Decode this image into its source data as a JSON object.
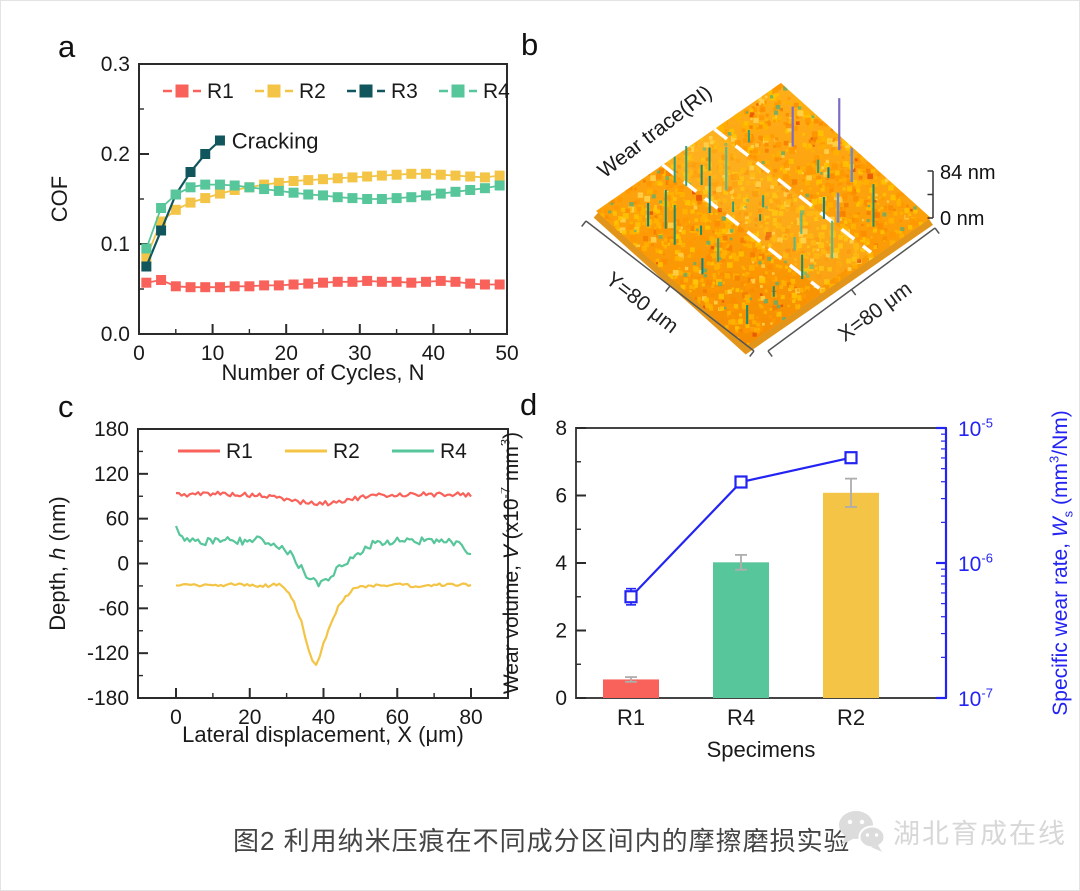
{
  "figure": {
    "panels": {
      "a": {
        "label": "a"
      },
      "b": {
        "label": "b"
      },
      "c": {
        "label": "c"
      },
      "d": {
        "label": "d"
      }
    }
  },
  "caption": {
    "text": "图2 利用纳米压痕在不同成分区间内的摩擦磨损实验",
    "watermark": "湖北育成在线"
  },
  "colors": {
    "r1": "#F8625A",
    "r2": "#F3C445",
    "r3": "#11565C",
    "r4": "#57C69B",
    "blue": "#2323F3",
    "axis": "#2B2B2B",
    "error_gray": "#ADADAD"
  },
  "chart_data": [
    {
      "id": "cof_vs_cycles",
      "type": "line",
      "xlabel": "Number of Cycles, N",
      "ylabel": "COF",
      "xlim": [
        0,
        50
      ],
      "ylim": [
        0,
        0.3
      ],
      "xtick_values": [
        0,
        10,
        20,
        30,
        40,
        50
      ],
      "xtick_labels": [
        "0",
        "10",
        "20",
        "30",
        "40",
        "50"
      ],
      "ytick_values": [
        0,
        0.1,
        0.2,
        0.3
      ],
      "ytick_labels": [
        "0.0",
        "0.1",
        "0.2",
        "0.3"
      ],
      "legend_position": "top-inside",
      "annotation": "Cracking",
      "annotation_at": {
        "x": 12.6,
        "y": 0.215
      },
      "series": [
        {
          "name": "R1",
          "color_key": "r1",
          "marker": "square",
          "x": [
            1,
            3,
            5,
            7,
            9,
            11,
            13,
            15,
            17,
            19,
            21,
            23,
            25,
            27,
            29,
            31,
            33,
            35,
            37,
            39,
            41,
            43,
            45,
            47,
            49
          ],
          "y": [
            0.057,
            0.06,
            0.053,
            0.052,
            0.052,
            0.052,
            0.053,
            0.053,
            0.054,
            0.054,
            0.055,
            0.056,
            0.057,
            0.058,
            0.058,
            0.059,
            0.058,
            0.058,
            0.057,
            0.058,
            0.059,
            0.058,
            0.056,
            0.055,
            0.055
          ]
        },
        {
          "name": "R2",
          "color_key": "r2",
          "marker": "square",
          "x": [
            1,
            3,
            5,
            7,
            9,
            11,
            13,
            15,
            17,
            19,
            21,
            23,
            25,
            27,
            29,
            31,
            33,
            35,
            37,
            39,
            41,
            43,
            45,
            47,
            49
          ],
          "y": [
            0.085,
            0.125,
            0.138,
            0.146,
            0.151,
            0.156,
            0.16,
            0.163,
            0.166,
            0.168,
            0.17,
            0.171,
            0.172,
            0.173,
            0.174,
            0.175,
            0.176,
            0.177,
            0.178,
            0.178,
            0.177,
            0.176,
            0.175,
            0.174,
            0.176
          ]
        },
        {
          "name": "R3",
          "color_key": "r3",
          "marker": "square",
          "x": [
            1,
            3,
            5,
            7,
            9,
            11
          ],
          "y": [
            0.075,
            0.115,
            0.155,
            0.18,
            0.2,
            0.215
          ]
        },
        {
          "name": "R4",
          "color_key": "r4",
          "marker": "square",
          "x": [
            1,
            3,
            5,
            7,
            9,
            11,
            13,
            15,
            17,
            19,
            21,
            23,
            25,
            27,
            29,
            31,
            33,
            35,
            37,
            39,
            41,
            43,
            45,
            47,
            49
          ],
          "y": [
            0.095,
            0.14,
            0.155,
            0.163,
            0.166,
            0.166,
            0.165,
            0.163,
            0.161,
            0.159,
            0.157,
            0.155,
            0.154,
            0.152,
            0.151,
            0.15,
            0.15,
            0.151,
            0.152,
            0.154,
            0.156,
            0.158,
            0.16,
            0.162,
            0.165
          ]
        }
      ]
    },
    {
      "id": "wear_surface",
      "type": "surface3d",
      "annotation": "Wear trace(RI)",
      "x_axis_label": "X=80 μm",
      "y_axis_label": "Y=80 μm",
      "scale_max_label": "84 nm",
      "scale_min_label": "0 nm",
      "surface_base_colors": [
        "#FFAE1A",
        "#FC9E08",
        "#F58C00"
      ],
      "speckle_colors": [
        "#FFB300",
        "#FF9800",
        "#FFC400",
        "#FB8C00",
        "#FFD54F",
        "#F57C00",
        "#E65100"
      ],
      "spike_colors": [
        "#2F9E77",
        "#1F8A66",
        "#56B98C",
        "#00838F"
      ],
      "accent_spike_colors": [
        "#7E6BC4",
        "#5C8DD6"
      ],
      "trace_band_color": "#FFD34D"
    },
    {
      "id": "depth_profiles",
      "type": "line",
      "xlabel": "Lateral displacement, X (μm)",
      "ylabel_parts": [
        {
          "t": "Depth, "
        },
        {
          "t": "h",
          "style": "italic"
        },
        {
          "t": " (nm)"
        }
      ],
      "xlim": [
        0,
        80
      ],
      "ylim": [
        -180,
        180
      ],
      "xtick_values": [
        0,
        20,
        40,
        60,
        80
      ],
      "xtick_labels": [
        "0",
        "20",
        "40",
        "60",
        "80"
      ],
      "ytick_values": [
        -180,
        -120,
        -60,
        0,
        60,
        120,
        180
      ],
      "ytick_labels": [
        "-180",
        "-120",
        "-60",
        "0",
        "60",
        "120",
        "180"
      ],
      "legend_position": "top-inside",
      "series": [
        {
          "name": "R1",
          "color_key": "r1",
          "noise": 3,
          "x": [
            0,
            3,
            6,
            10,
            14,
            18,
            22,
            26,
            30,
            33,
            36,
            39,
            42,
            45,
            50,
            55,
            60,
            65,
            70,
            75,
            80
          ],
          "y": [
            93,
            92,
            93,
            94,
            93,
            92,
            91,
            89,
            86,
            83,
            81,
            80,
            81,
            84,
            88,
            91,
            92,
            93,
            92,
            93,
            92
          ]
        },
        {
          "name": "R2",
          "color_key": "r2",
          "noise": 2,
          "x": [
            0,
            5,
            10,
            15,
            20,
            25,
            28,
            30,
            32,
            34,
            35,
            36,
            37,
            38,
            39,
            40,
            42,
            44,
            46,
            48,
            50,
            55,
            60,
            65,
            70,
            75,
            80
          ],
          "y": [
            -30,
            -29,
            -30,
            -28,
            -29,
            -30,
            -27,
            -35,
            -52,
            -78,
            -98,
            -118,
            -132,
            -135,
            -126,
            -108,
            -80,
            -58,
            -44,
            -35,
            -31,
            -29,
            -28,
            -30,
            -29,
            -28,
            -29
          ]
        },
        {
          "name": "R4",
          "color_key": "r4",
          "noise": 5,
          "x": [
            0,
            1,
            3,
            6,
            10,
            14,
            18,
            22,
            25,
            28,
            31,
            34,
            36,
            38,
            40,
            42,
            45,
            48,
            52,
            56,
            60,
            64,
            68,
            72,
            76,
            79,
            80
          ],
          "y": [
            46,
            38,
            30,
            28,
            31,
            32,
            30,
            33,
            30,
            24,
            12,
            -6,
            -18,
            -27,
            -24,
            -15,
            -4,
            10,
            24,
            29,
            30,
            29,
            31,
            30,
            29,
            18,
            8
          ]
        }
      ]
    },
    {
      "id": "wear_volume_rate",
      "type": "bar+line",
      "xlabel": "Specimens",
      "ylabel_left_parts": [
        {
          "t": "Wear volume, "
        },
        {
          "t": "V",
          "style": "italic"
        },
        {
          "t": " (x10"
        },
        {
          "t": "-7",
          "style": "sup"
        },
        {
          "t": " mm"
        },
        {
          "t": "3",
          "style": "sup"
        },
        {
          "t": ")"
        }
      ],
      "ylabel_right_parts": [
        {
          "t": "Specific wear rate, "
        },
        {
          "t": "W",
          "style": "italic"
        },
        {
          "t": "s",
          "style": "sub"
        },
        {
          "t": " (mm"
        },
        {
          "t": "3",
          "style": "sup"
        },
        {
          "t": "/Nm)"
        }
      ],
      "categories": [
        "R1",
        "R4",
        "R2"
      ],
      "ylim_left": [
        0,
        8
      ],
      "ytick_left_values": [
        0,
        2,
        4,
        6,
        8
      ],
      "ytick_left_labels": [
        "0",
        "2",
        "4",
        "6",
        "8"
      ],
      "ytick_right": [
        {
          "base": "10",
          "exp": "-5",
          "log": -5
        },
        {
          "base": "10",
          "exp": "-6",
          "log": -6
        },
        {
          "base": "10",
          "exp": "-7",
          "log": -7
        }
      ],
      "right_log_range": [
        -7,
        -5
      ],
      "bars": {
        "values": [
          0.55,
          4.02,
          6.08
        ],
        "errors": [
          0.07,
          0.22,
          0.42
        ],
        "color_keys": [
          "r1",
          "r4",
          "r2"
        ]
      },
      "line": {
        "name": "Ws",
        "ws_values": [
          "5.6e-7",
          "4.0e-6",
          "6.0e-6"
        ],
        "values_log10": [
          -6.25,
          -5.4,
          -5.22
        ],
        "errors_log10": [
          0.06,
          0.03,
          0.03
        ]
      }
    }
  ]
}
